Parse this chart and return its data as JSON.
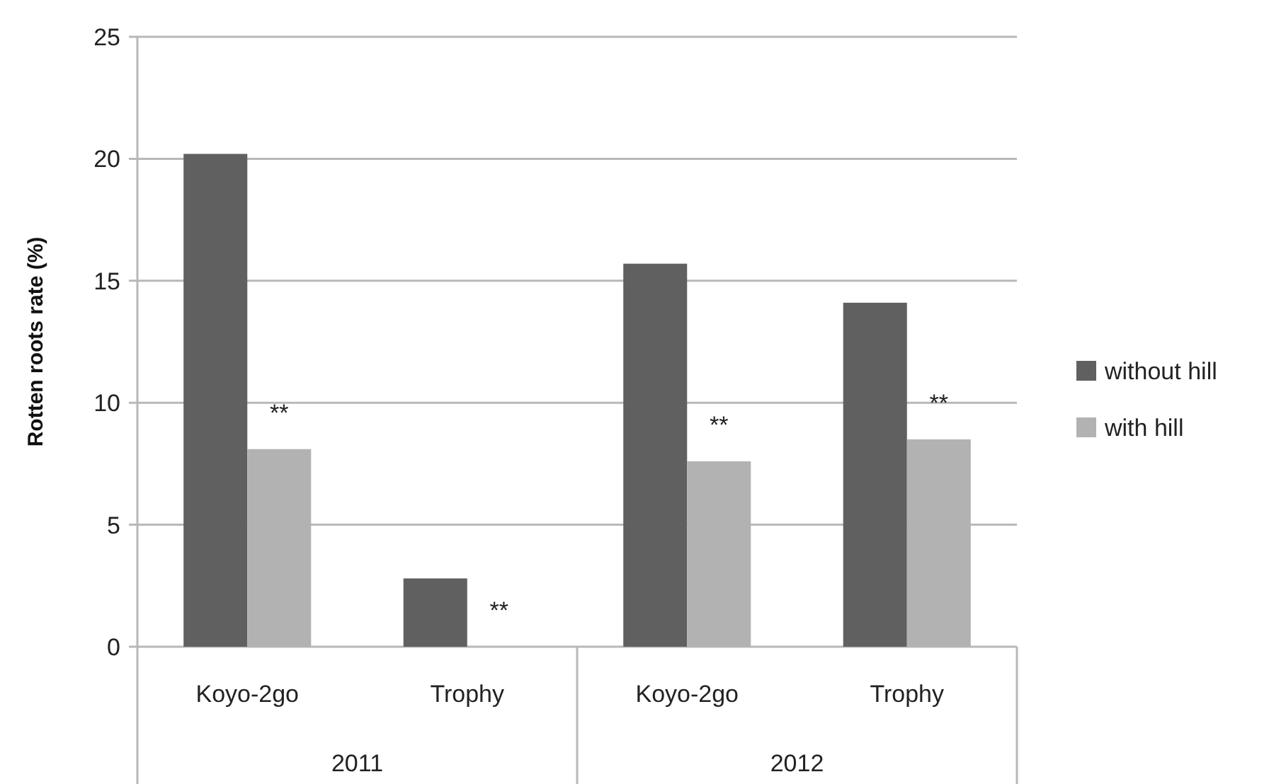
{
  "chart_data": {
    "type": "bar",
    "ylabel": "Rotten roots rate (%)",
    "categories": [
      "Koyo-2go",
      "Trophy",
      "Koyo-2go",
      "Trophy"
    ],
    "series": [
      {
        "name": "without hill",
        "color": "#606060",
        "values": [
          20.2,
          2.8,
          15.7,
          14.1
        ]
      },
      {
        "name": "with hill",
        "color": "#b2b2b2",
        "values": [
          8.1,
          0,
          7.6,
          8.5
        ]
      }
    ],
    "ylim": [
      0,
      25
    ],
    "yticks": [
      0,
      5,
      10,
      15,
      20,
      25
    ],
    "grid": "y",
    "legend": "right",
    "annotations": [
      "**",
      "**",
      "**",
      "**",
      "2011",
      "2012"
    ]
  }
}
